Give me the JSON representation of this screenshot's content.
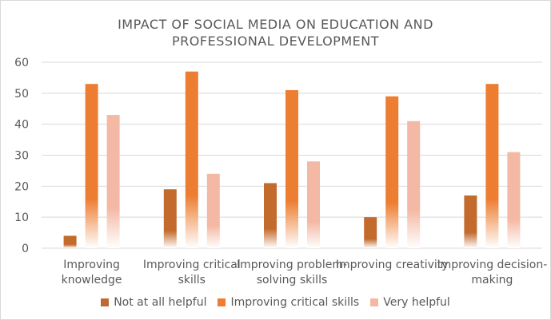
{
  "chart_data": {
    "type": "bar",
    "title_lines": [
      "IMPACT OF SOCIAL MEDIA ON EDUCATION AND",
      "PROFESSIONAL DEVELOPMENT"
    ],
    "categories": [
      [
        "Improving",
        "knowledge"
      ],
      [
        "Improving critical",
        "skills"
      ],
      [
        "Improving problem-",
        "solving skills"
      ],
      [
        "Improving creativity"
      ],
      [
        "Improving decision-",
        "making"
      ]
    ],
    "series": [
      {
        "name": "Not at all helpful",
        "values": [
          4,
          19,
          21,
          10,
          17
        ],
        "color": "#c36a2d"
      },
      {
        "name": "Improving critical skills",
        "values": [
          53,
          57,
          51,
          49,
          53
        ],
        "color": "#ed7d31"
      },
      {
        "name": "Very helpful",
        "values": [
          43,
          24,
          28,
          41,
          31
        ],
        "color": "#f4b9a4"
      }
    ],
    "ylim": [
      0,
      60
    ],
    "yticks": [
      0,
      10,
      20,
      30,
      40,
      50,
      60
    ],
    "grid": true,
    "legend_position": "bottom"
  }
}
